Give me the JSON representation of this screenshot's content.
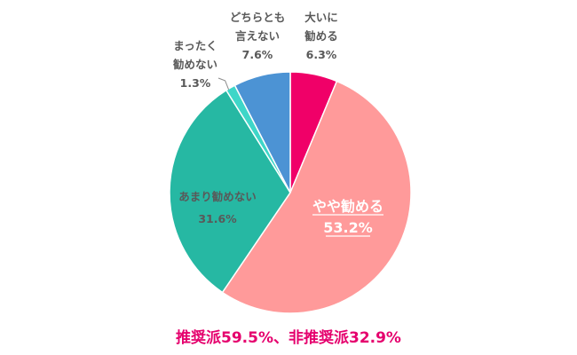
{
  "chart_data": {
    "type": "pie",
    "slices": [
      {
        "label": "大いに\n勧める",
        "value": 6.3,
        "value_label": "6.3%",
        "color": "#f00068"
      },
      {
        "label": "やや勧める",
        "value": 53.2,
        "value_label": "53.2%",
        "color": "#ff9a9a"
      },
      {
        "label": "あまり勧めない",
        "value": 31.6,
        "value_label": "31.6%",
        "color": "#26b8a3"
      },
      {
        "label": "まったく\n勧めない",
        "value": 1.3,
        "value_label": "1.3%",
        "color": "#3ed6c8"
      },
      {
        "label": "どちらとも\n言えない",
        "value": 7.6,
        "value_label": "7.6%",
        "color": "#4c93d4"
      }
    ],
    "summary": "推奨派59.5%、非推奨派32.9%",
    "summary_color": "#e5006d"
  }
}
